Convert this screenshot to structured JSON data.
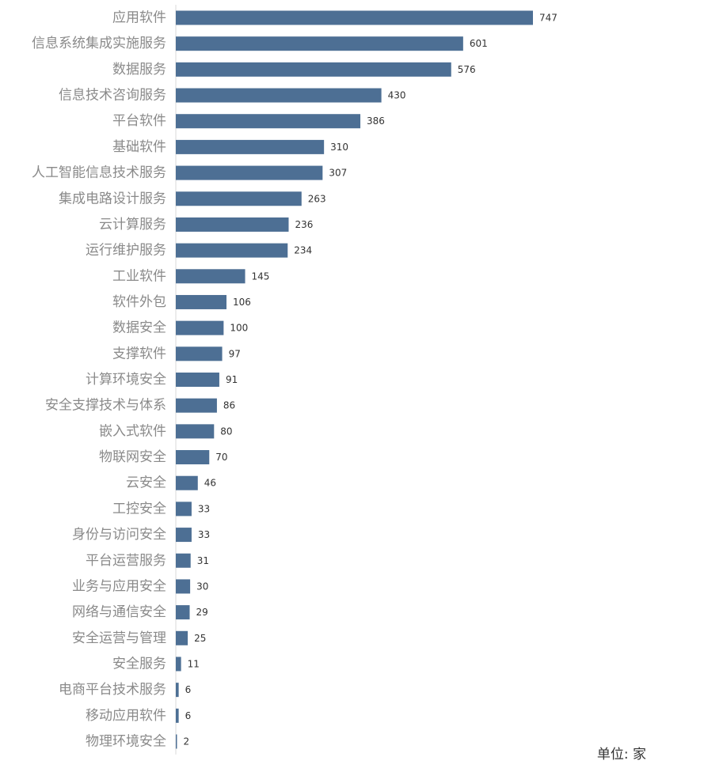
{
  "chart_data": {
    "type": "bar",
    "orientation": "horizontal",
    "categories": [
      "应用软件",
      "信息系统集成实施服务",
      "数据服务",
      "信息技术咨询服务",
      "平台软件",
      "基础软件",
      "人工智能信息技术服务",
      "集成电路设计服务",
      "云计算服务",
      "运行维护服务",
      "工业软件",
      "软件外包",
      "数据安全",
      "支撑软件",
      "计算环境安全",
      "安全支撑技术与体系",
      "嵌入式软件",
      "物联网安全",
      "云安全",
      "工控安全",
      "身份与访问安全",
      "平台运营服务",
      "业务与应用安全",
      "网络与通信安全",
      "安全运营与管理",
      "安全服务",
      "电商平台技术服务",
      "移动应用软件",
      "物理环境安全"
    ],
    "values": [
      747,
      601,
      576,
      430,
      386,
      310,
      307,
      263,
      236,
      234,
      145,
      106,
      100,
      97,
      91,
      86,
      80,
      70,
      46,
      33,
      33,
      31,
      30,
      29,
      25,
      11,
      6,
      6,
      2
    ],
    "unit_label": "单位: 家",
    "bar_color": "#4d6f94",
    "sorted": "descending",
    "grid": false,
    "legend": "none"
  }
}
